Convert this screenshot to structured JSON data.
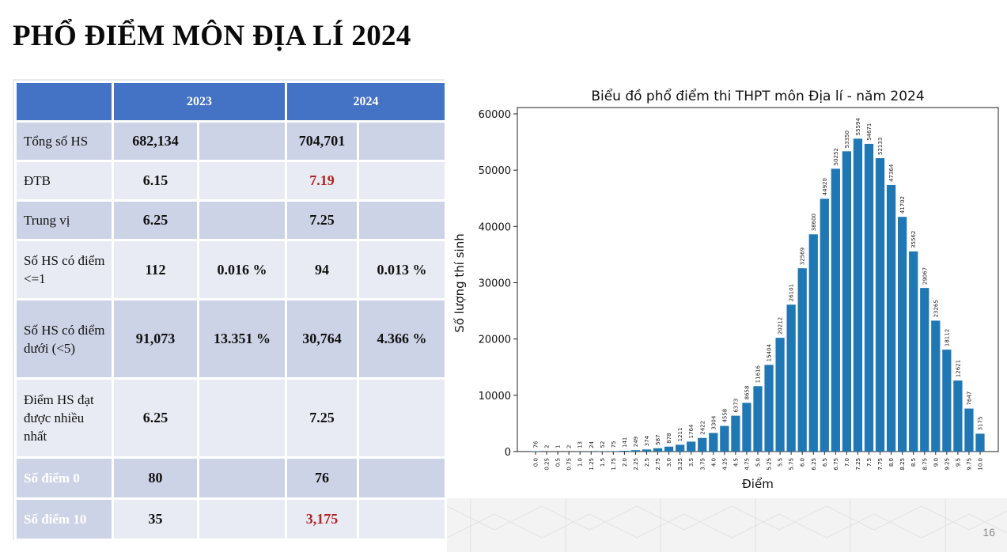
{
  "slide": {
    "title": "PHỔ ĐIỂM MÔN ĐỊA LÍ 2024",
    "page_number": "16"
  },
  "table": {
    "year_headers": [
      "2023",
      "2024"
    ],
    "rows": [
      {
        "label": "Tổng số HS",
        "v2023": "682,134",
        "p2023": "",
        "v2024": "704,701",
        "p2024": ""
      },
      {
        "label": "ĐTB",
        "v2023": "6.15",
        "p2023": "",
        "v2024": "7.19",
        "p2024": ""
      },
      {
        "label": "Trung vị",
        "v2023": "6.25",
        "p2023": "",
        "v2024": "7.25",
        "p2024": ""
      },
      {
        "label": "Số HS có điểm <=1",
        "v2023": "112",
        "p2023": "0.016 %",
        "v2024": "94",
        "p2024": "0.013 %"
      },
      {
        "label": "Số HS có điểm dưới (<5)",
        "v2023": "91,073",
        "p2023": "13.351 %",
        "v2024": "30,764",
        "p2024": "4.366 %"
      },
      {
        "label": "Điểm HS đạt được nhiều nhất",
        "v2023": "6.25",
        "p2023": "",
        "v2024": "7.25",
        "p2024": ""
      },
      {
        "label": "Số điểm 0",
        "v2023": "80",
        "p2023": "",
        "v2024": "76",
        "p2024": ""
      },
      {
        "label": "Số điểm 10",
        "v2023": "35",
        "p2023": "",
        "v2024": "3,175",
        "p2024": ""
      }
    ],
    "highlight_color": "#b22222"
  },
  "chart_data": {
    "type": "bar",
    "title": "Biểu đồ phổ điểm thi THPT môn Địa lí - năm 2024",
    "xlabel": "Điểm",
    "ylabel": "Số lượng thí sinh",
    "ylim": [
      0,
      60000
    ],
    "yticks": [
      0,
      10000,
      20000,
      30000,
      40000,
      50000,
      60000
    ],
    "categories": [
      "0.0",
      "0.25",
      "0.5",
      "0.75",
      "1.0",
      "1.25",
      "1.5",
      "1.75",
      "2.0",
      "2.25",
      "2.5",
      "2.75",
      "3.0",
      "3.25",
      "3.5",
      "3.75",
      "4.0",
      "4.25",
      "4.5",
      "4.75",
      "5.0",
      "5.25",
      "5.5",
      "5.75",
      "6.0",
      "6.25",
      "6.5",
      "6.75",
      "7.0",
      "7.25",
      "7.5",
      "7.75",
      "8.0",
      "8.25",
      "8.5",
      "8.75",
      "9.0",
      "9.25",
      "9.5",
      "9.75",
      "10.0"
    ],
    "values": [
      76,
      2,
      1,
      2,
      13,
      24,
      52,
      75,
      141,
      249,
      374,
      587,
      878,
      1211,
      1764,
      2422,
      3304,
      4558,
      6373,
      8658,
      11616,
      15404,
      20212,
      26101,
      32569,
      38600,
      44920,
      50252,
      53350,
      55594,
      54671,
      52133,
      47364,
      41702,
      35562,
      29067,
      23265,
      18112,
      12621,
      7647,
      3175
    ],
    "bar_color": "#1f77b4",
    "grid": false
  }
}
